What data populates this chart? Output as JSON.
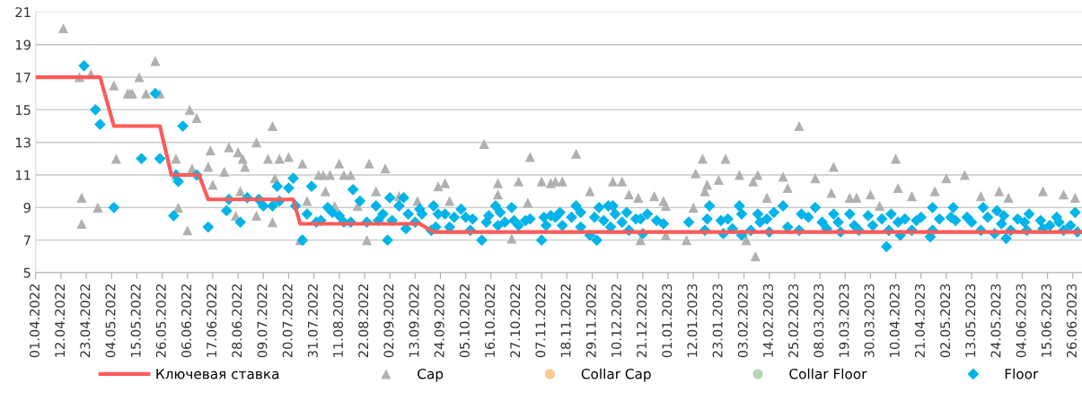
{
  "chart_data": {
    "type": "scatter",
    "xlim": [
      "2022-04-01",
      "2023-06-30"
    ],
    "ylim": [
      5,
      21
    ],
    "yticks": [
      5,
      7,
      9,
      11,
      13,
      15,
      17,
      19,
      21
    ],
    "xticks": [
      {
        "value": "2022-04-01",
        "label": "01.04.2022"
      },
      {
        "value": "2022-04-12",
        "label": "12.04.2022"
      },
      {
        "value": "2022-04-23",
        "label": "23.04.2022"
      },
      {
        "value": "2022-05-04",
        "label": "04.05.2022"
      },
      {
        "value": "2022-05-15",
        "label": "15.05.2022"
      },
      {
        "value": "2022-05-26",
        "label": "26.05.2022"
      },
      {
        "value": "2022-06-06",
        "label": "06.06.2022"
      },
      {
        "value": "2022-06-17",
        "label": "17.06.2022"
      },
      {
        "value": "2022-06-28",
        "label": "28.06.2022"
      },
      {
        "value": "2022-07-09",
        "label": "09.07.2022"
      },
      {
        "value": "2022-07-20",
        "label": "20.07.2022"
      },
      {
        "value": "2022-07-31",
        "label": "31.07.2022"
      },
      {
        "value": "2022-08-11",
        "label": "11.08.2022"
      },
      {
        "value": "2022-08-22",
        "label": "22.08.2022"
      },
      {
        "value": "2022-09-02",
        "label": "02.09.2022"
      },
      {
        "value": "2022-09-13",
        "label": "13.09.2022"
      },
      {
        "value": "2022-09-24",
        "label": "24.09.2022"
      },
      {
        "value": "2022-10-05",
        "label": "05.10.2022"
      },
      {
        "value": "2022-10-16",
        "label": "16.10.2022"
      },
      {
        "value": "2022-10-27",
        "label": "27.10.2022"
      },
      {
        "value": "2022-11-07",
        "label": "07.11.2022"
      },
      {
        "value": "2022-11-18",
        "label": "18.11.2022"
      },
      {
        "value": "2022-11-29",
        "label": "29.11.2022"
      },
      {
        "value": "2022-12-10",
        "label": "10.12.2022"
      },
      {
        "value": "2022-12-21",
        "label": "21.12.2022"
      },
      {
        "value": "2023-01-01",
        "label": "01.01.2023"
      },
      {
        "value": "2023-01-12",
        "label": "12.01.2023"
      },
      {
        "value": "2023-01-23",
        "label": "23.01.2023"
      },
      {
        "value": "2023-02-03",
        "label": "03.02.2023"
      },
      {
        "value": "2023-02-14",
        "label": "14.02.2023"
      },
      {
        "value": "2023-02-25",
        "label": "25.02.2023"
      },
      {
        "value": "2023-03-08",
        "label": "08.03.2023"
      },
      {
        "value": "2023-03-19",
        "label": "19.03.2023"
      },
      {
        "value": "2023-03-30",
        "label": "30.03.2023"
      },
      {
        "value": "2023-04-10",
        "label": "10.04.2023"
      },
      {
        "value": "2023-04-21",
        "label": "21.04.2023"
      },
      {
        "value": "2023-05-02",
        "label": "02.05.2023"
      },
      {
        "value": "2023-05-13",
        "label": "13.05.2023"
      },
      {
        "value": "2023-05-24",
        "label": "24.05.2023"
      },
      {
        "value": "2023-06-04",
        "label": "04.06.2023"
      },
      {
        "value": "2023-06-15",
        "label": "15.06.2023"
      },
      {
        "value": "2023-06-26",
        "label": "26.06.2023"
      }
    ],
    "grid": "y",
    "legend": "bottom",
    "series": [
      {
        "name": "Ключевая ставка",
        "type": "line",
        "color": "#ff5a5a",
        "marker": "none",
        "line_style": "solid",
        "x": [
          "2022-04-01",
          "2022-04-29",
          "2022-05-05",
          "2022-05-25",
          "2022-05-30",
          "2022-06-11",
          "2022-06-15",
          "2022-07-22",
          "2022-07-25",
          "2022-09-15",
          "2022-09-21",
          "2023-06-30"
        ],
        "values": [
          17,
          17,
          14,
          14,
          11,
          11,
          9.5,
          9.5,
          8,
          8,
          7.5,
          7.5
        ]
      },
      {
        "name": "Cap",
        "color": "#b0b0b0",
        "marker": "triangle",
        "x": [
          "2022-04-13",
          "2022-04-20",
          "2022-04-21",
          "2022-04-21",
          "2022-04-25",
          "2022-04-28",
          "2022-05-05",
          "2022-05-06",
          "2022-05-11",
          "2022-05-12",
          "2022-05-13",
          "2022-05-16",
          "2022-05-19",
          "2022-05-23",
          "2022-05-25",
          "2022-06-01",
          "2022-06-01",
          "2022-06-02",
          "2022-06-06",
          "2022-06-07",
          "2022-06-08",
          "2022-06-10",
          "2022-06-15",
          "2022-06-16",
          "2022-06-17",
          "2022-06-22",
          "2022-06-24",
          "2022-06-27",
          "2022-06-28",
          "2022-06-29",
          "2022-06-30",
          "2022-07-01",
          "2022-07-06",
          "2022-07-06",
          "2022-07-11",
          "2022-07-13",
          "2022-07-13",
          "2022-07-14",
          "2022-07-16",
          "2022-07-20",
          "2022-07-25",
          "2022-07-26",
          "2022-07-28",
          "2022-08-02",
          "2022-08-04",
          "2022-08-05",
          "2022-08-07",
          "2022-08-09",
          "2022-08-11",
          "2022-08-13",
          "2022-08-16",
          "2022-08-19",
          "2022-08-23",
          "2022-08-24",
          "2022-08-27",
          "2022-08-31",
          "2022-09-06",
          "2022-09-14",
          "2022-09-23",
          "2022-09-26",
          "2022-09-28",
          "2022-10-13",
          "2022-10-19",
          "2022-10-19",
          "2022-10-25",
          "2022-10-28",
          "2022-11-01",
          "2022-11-02",
          "2022-11-07",
          "2022-11-11",
          "2022-11-13",
          "2022-11-16",
          "2022-11-22",
          "2022-11-28",
          "2022-12-08",
          "2022-12-12",
          "2022-12-15",
          "2022-12-19",
          "2022-12-20",
          "2022-12-26",
          "2022-12-30",
          "2022-12-31",
          "2022-12-31",
          "2023-01-09",
          "2023-01-12",
          "2023-01-13",
          "2023-01-16",
          "2023-01-17",
          "2023-01-18",
          "2023-01-23",
          "2023-01-26",
          "2023-02-01",
          "2023-02-04",
          "2023-02-07",
          "2023-02-08",
          "2023-02-09",
          "2023-02-13",
          "2023-02-20",
          "2023-02-22",
          "2023-02-27",
          "2023-03-06",
          "2023-03-13",
          "2023-03-14",
          "2023-03-21",
          "2023-03-24",
          "2023-03-30",
          "2023-04-03",
          "2023-04-10",
          "2023-04-11",
          "2023-04-17",
          "2023-04-27",
          "2023-05-02",
          "2023-05-10",
          "2023-05-17",
          "2023-05-25",
          "2023-05-29",
          "2023-06-13",
          "2023-06-22",
          "2023-06-27"
        ],
        "values": [
          20,
          17,
          9.6,
          8,
          17.2,
          9,
          16.5,
          12,
          16,
          16,
          16,
          17,
          16,
          18,
          16,
          12,
          11,
          9,
          7.6,
          15,
          11.4,
          14.5,
          11.5,
          12.5,
          10.4,
          11.2,
          12.7,
          8.5,
          12.4,
          10,
          12,
          11.5,
          13,
          8.5,
          12,
          14,
          8.1,
          10.8,
          12,
          12.1,
          7,
          11.7,
          9.4,
          11,
          11,
          10,
          11,
          9.1,
          11.7,
          11,
          11,
          9.1,
          7,
          11.7,
          10,
          11.4,
          9.7,
          9.4,
          10.3,
          10.5,
          9.4,
          12.9,
          10.5,
          9.8,
          7.1,
          10.6,
          9.3,
          12.1,
          10.6,
          10.5,
          10.6,
          10.6,
          12.3,
          10,
          10.6,
          10.6,
          9.8,
          9.6,
          7,
          9.7,
          9.4,
          9.1,
          7.3,
          7,
          9,
          11.1,
          12,
          10,
          10.4,
          10.7,
          12,
          11,
          7,
          10.6,
          6,
          11,
          9.6,
          10.9,
          10.2,
          14,
          10.8,
          9.9,
          11.5,
          9.6,
          9.6,
          9.8,
          9.1,
          12,
          10.2,
          9.7,
          10,
          10.8,
          11,
          9.7,
          10,
          9.6,
          10,
          9.8,
          9.6
        ]
      },
      {
        "name": "Collar Cap",
        "color": "#fac98f",
        "marker": "circle"
      },
      {
        "name": "Collar Floor",
        "color": "#b5d6b2",
        "marker": "circle"
      },
      {
        "name": "Floor",
        "color": "#00b4ea",
        "marker": "diamond",
        "x": [
          "2022-04-22",
          "2022-04-27",
          "2022-04-29",
          "2022-05-05",
          "2022-05-17",
          "2022-05-23",
          "2022-05-25",
          "2022-05-31",
          "2022-06-01",
          "2022-06-02",
          "2022-06-04",
          "2022-06-10",
          "2022-06-15",
          "2022-06-23",
          "2022-06-24",
          "2022-06-29",
          "2022-07-02",
          "2022-07-07",
          "2022-07-09",
          "2022-07-13",
          "2022-07-15",
          "2022-07-16",
          "2022-07-20",
          "2022-07-22",
          "2022-07-23",
          "2022-07-26",
          "2022-07-28",
          "2022-07-30",
          "2022-08-01",
          "2022-08-03",
          "2022-08-06",
          "2022-08-08",
          "2022-08-11",
          "2022-08-13",
          "2022-08-16",
          "2022-08-17",
          "2022-08-20",
          "2022-08-23",
          "2022-08-27",
          "2022-08-28",
          "2022-08-30",
          "2022-09-01",
          "2022-09-02",
          "2022-09-03",
          "2022-09-06",
          "2022-09-08",
          "2022-09-09",
          "2022-09-10",
          "2022-09-13",
          "2022-09-15",
          "2022-09-16",
          "2022-09-20",
          "2022-09-21",
          "2022-09-22",
          "2022-09-23",
          "2022-09-26",
          "2022-09-28",
          "2022-09-30",
          "2022-10-03",
          "2022-10-05",
          "2022-10-07",
          "2022-10-08",
          "2022-10-12",
          "2022-10-14",
          "2022-10-15",
          "2022-10-18",
          "2022-10-19",
          "2022-10-20",
          "2022-10-22",
          "2022-10-25",
          "2022-10-26",
          "2022-10-28",
          "2022-10-31",
          "2022-11-02",
          "2022-11-07",
          "2022-11-08",
          "2022-11-09",
          "2022-11-11",
          "2022-11-13",
          "2022-11-15",
          "2022-11-16",
          "2022-11-20",
          "2022-11-22",
          "2022-11-24",
          "2022-11-24",
          "2022-11-28",
          "2022-11-30",
          "2022-12-01",
          "2022-12-02",
          "2022-12-04",
          "2022-12-06",
          "2022-12-07",
          "2022-12-08",
          "2022-12-09",
          "2022-12-12",
          "2022-12-14",
          "2022-12-15",
          "2022-12-18",
          "2022-12-20",
          "2022-12-21",
          "2022-12-23",
          "2022-12-27",
          "2022-12-30",
          "2023-01-10",
          "2023-01-17",
          "2023-01-18",
          "2023-01-19",
          "2023-01-24",
          "2023-01-25",
          "2023-01-27",
          "2023-01-29",
          "2023-02-01",
          "2023-02-02",
          "2023-02-02",
          "2023-02-06",
          "2023-02-09",
          "2023-02-10",
          "2023-02-13",
          "2023-02-14",
          "2023-02-16",
          "2023-02-20",
          "2023-02-22",
          "2023-02-27",
          "2023-02-28",
          "2023-03-03",
          "2023-03-06",
          "2023-03-09",
          "2023-03-11",
          "2023-03-14",
          "2023-03-16",
          "2023-03-17",
          "2023-03-21",
          "2023-03-23",
          "2023-03-25",
          "2023-03-29",
          "2023-03-31",
          "2023-04-04",
          "2023-04-06",
          "2023-04-07",
          "2023-04-08",
          "2023-04-11",
          "2023-04-12",
          "2023-04-14",
          "2023-04-17",
          "2023-04-19",
          "2023-04-21",
          "2023-04-25",
          "2023-04-26",
          "2023-04-26",
          "2023-04-29",
          "2023-05-04",
          "2023-05-05",
          "2023-05-06",
          "2023-05-11",
          "2023-05-13",
          "2023-05-17",
          "2023-05-18",
          "2023-05-20",
          "2023-05-23",
          "2023-05-24",
          "2023-05-26",
          "2023-05-27",
          "2023-05-28",
          "2023-05-30",
          "2023-06-02",
          "2023-06-05",
          "2023-06-06",
          "2023-06-07",
          "2023-06-12",
          "2023-06-13",
          "2023-06-16",
          "2023-06-19",
          "2023-06-20",
          "2023-06-22",
          "2023-06-25",
          "2023-06-27",
          "2023-06-28"
        ],
        "values": [
          17.7,
          15,
          14.1,
          9,
          12,
          16,
          12,
          8.5,
          11,
          10.6,
          14,
          11,
          7.8,
          8.8,
          9.5,
          8.1,
          9.6,
          9.5,
          9.1,
          9.1,
          10.3,
          9.4,
          10.2,
          10.8,
          9.1,
          7,
          8.6,
          10.3,
          8.1,
          8.2,
          9,
          8.7,
          8.5,
          8.1,
          8.1,
          10.1,
          9.4,
          8.1,
          9.1,
          8.2,
          8.6,
          7,
          9.6,
          8.2,
          9.1,
          9.6,
          7.7,
          8.6,
          8.1,
          8.9,
          8.6,
          7.6,
          9.1,
          7.8,
          8.6,
          8.6,
          7.8,
          8.4,
          8.9,
          8.4,
          7.6,
          8.3,
          7,
          8.1,
          8.5,
          9.1,
          7.9,
          8.7,
          8.1,
          9,
          8.2,
          7.9,
          8.2,
          8.3,
          7,
          8.4,
          7.9,
          8.5,
          8.4,
          8.7,
          7.9,
          8.4,
          9.1,
          8.7,
          7.8,
          7.3,
          8.4,
          7,
          9,
          8.2,
          9.1,
          7.8,
          9.1,
          8.6,
          8.1,
          8.7,
          7.6,
          8.3,
          8.3,
          7.4,
          8.6,
          8.2,
          8,
          8.1,
          7.6,
          8.3,
          9.1,
          8.2,
          7.4,
          8.3,
          7.7,
          9.1,
          8.6,
          7.3,
          7.6,
          8.6,
          8.1,
          8.3,
          7.5,
          8.7,
          9.1,
          7.8,
          7.6,
          8.6,
          8.4,
          9,
          8.1,
          7.7,
          8.6,
          8.1,
          7.5,
          8.6,
          7.9,
          7.6,
          8.5,
          7.9,
          8.3,
          6.6,
          7.6,
          8.6,
          8.1,
          7.3,
          8.3,
          7.6,
          8.2,
          8.4,
          7.2,
          7.6,
          9,
          8.3,
          8.4,
          9,
          8.2,
          8.4,
          8.1,
          7.6,
          9,
          8.4,
          7.4,
          8.8,
          8,
          8.5,
          7.1,
          7.6,
          8.3,
          8.1,
          7.6,
          8.6,
          8.2,
          7.7,
          7.9,
          8.4,
          8.1,
          7.6,
          7.9,
          8.7,
          7.5
        ]
      }
    ]
  }
}
